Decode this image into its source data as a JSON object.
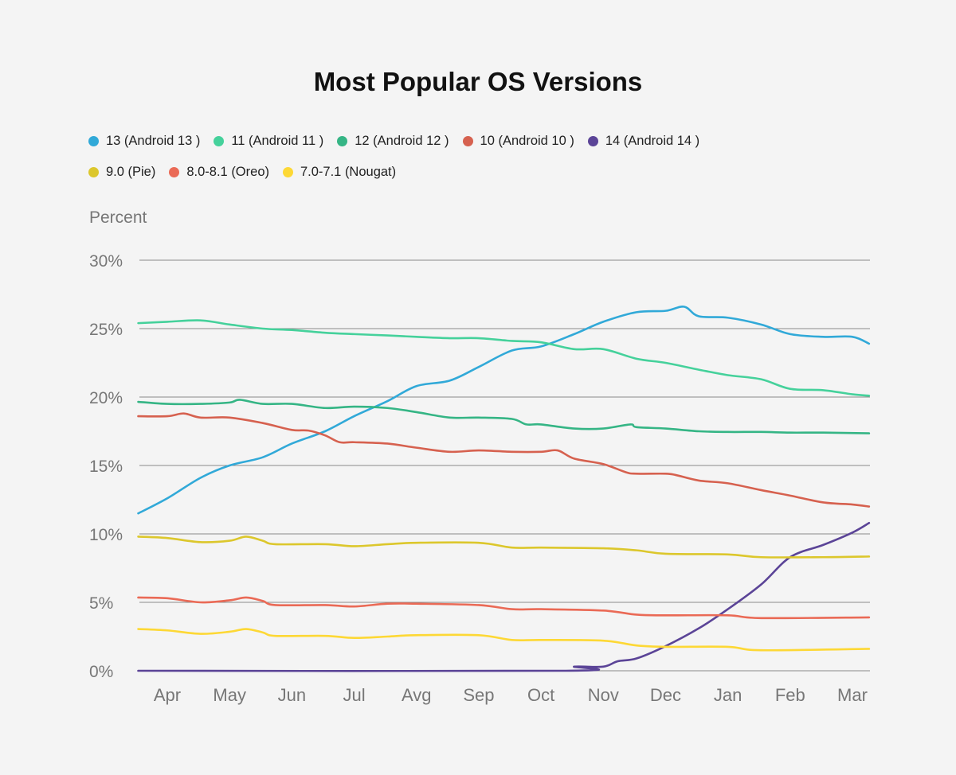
{
  "chart_data": {
    "type": "line",
    "title": "Most Popular OS Versions",
    "ylabel": "Percent",
    "xlabel": "",
    "ylim": [
      0,
      30
    ],
    "y_ticks": [
      "0%",
      "5%",
      "10%",
      "15%",
      "20%",
      "25%",
      "30%"
    ],
    "y_tick_values": [
      0,
      5,
      10,
      15,
      20,
      25,
      30
    ],
    "x_ticks": [
      "Apr",
      "May",
      "Jun",
      "Jul",
      "Avg",
      "Sep",
      "Oct",
      "Nov",
      "Dec",
      "Jan",
      "Feb",
      "Mar"
    ],
    "x_tick_dates": [
      "2023-04-15",
      "2023-05-15",
      "2023-06-15",
      "2023-07-15",
      "2023-08-15",
      "2023-09-15",
      "2023-10-15",
      "2023-11-15",
      "2023-12-15",
      "2024-01-15",
      "2024-02-15",
      "2024-03-15"
    ],
    "xlim": [
      "2023-04-01",
      "2024-03-23"
    ],
    "grid": true,
    "legend_position": "top",
    "series": [
      {
        "name": "13 (Android 13 )",
        "color": "#31a9d8",
        "points": [
          [
            "2023-04-01",
            11.5
          ],
          [
            "2023-04-15",
            12.6
          ],
          [
            "2023-05-01",
            14.1
          ],
          [
            "2023-05-15",
            15.0
          ],
          [
            "2023-06-01",
            15.6
          ],
          [
            "2023-06-15",
            16.6
          ],
          [
            "2023-07-01",
            17.5
          ],
          [
            "2023-07-15",
            18.6
          ],
          [
            "2023-08-01",
            19.7
          ],
          [
            "2023-08-15",
            20.8
          ],
          [
            "2023-09-01",
            21.2
          ],
          [
            "2023-09-15",
            22.2
          ],
          [
            "2023-10-01",
            23.4
          ],
          [
            "2023-10-15",
            23.7
          ],
          [
            "2023-11-01",
            24.6
          ],
          [
            "2023-11-15",
            25.5
          ],
          [
            "2023-12-01",
            26.2
          ],
          [
            "2023-12-15",
            26.3
          ],
          [
            "2023-12-24",
            26.6
          ],
          [
            "2024-01-01",
            25.9
          ],
          [
            "2024-01-15",
            25.8
          ],
          [
            "2024-02-01",
            25.3
          ],
          [
            "2024-02-15",
            24.6
          ],
          [
            "2024-03-01",
            24.4
          ],
          [
            "2024-03-15",
            24.4
          ],
          [
            "2024-03-23",
            23.9
          ]
        ]
      },
      {
        "name": "11 (Android 11 )",
        "color": "#45d19b",
        "points": [
          [
            "2023-04-01",
            25.4
          ],
          [
            "2023-04-15",
            25.5
          ],
          [
            "2023-05-01",
            25.6
          ],
          [
            "2023-05-15",
            25.3
          ],
          [
            "2023-06-01",
            25.0
          ],
          [
            "2023-06-15",
            24.9
          ],
          [
            "2023-07-01",
            24.7
          ],
          [
            "2023-07-15",
            24.6
          ],
          [
            "2023-08-01",
            24.5
          ],
          [
            "2023-08-15",
            24.4
          ],
          [
            "2023-09-01",
            24.3
          ],
          [
            "2023-09-15",
            24.3
          ],
          [
            "2023-10-01",
            24.1
          ],
          [
            "2023-10-15",
            24.0
          ],
          [
            "2023-11-01",
            23.5
          ],
          [
            "2023-11-15",
            23.5
          ],
          [
            "2023-12-01",
            22.8
          ],
          [
            "2023-12-15",
            22.5
          ],
          [
            "2024-01-01",
            22.0
          ],
          [
            "2024-01-15",
            21.6
          ],
          [
            "2024-02-01",
            21.3
          ],
          [
            "2024-02-15",
            20.6
          ],
          [
            "2024-03-01",
            20.5
          ],
          [
            "2024-03-15",
            20.2
          ],
          [
            "2024-03-23",
            20.1
          ]
        ]
      },
      {
        "name": "12 (Android 12 )",
        "color": "#35b585",
        "points": [
          [
            "2023-04-01",
            19.65
          ],
          [
            "2023-04-15",
            19.5
          ],
          [
            "2023-05-01",
            19.5
          ],
          [
            "2023-05-15",
            19.6
          ],
          [
            "2023-05-20",
            19.8
          ],
          [
            "2023-06-01",
            19.5
          ],
          [
            "2023-06-15",
            19.5
          ],
          [
            "2023-07-01",
            19.2
          ],
          [
            "2023-07-15",
            19.3
          ],
          [
            "2023-08-01",
            19.2
          ],
          [
            "2023-08-15",
            18.9
          ],
          [
            "2023-09-01",
            18.5
          ],
          [
            "2023-09-15",
            18.5
          ],
          [
            "2023-10-01",
            18.4
          ],
          [
            "2023-10-08",
            18.0
          ],
          [
            "2023-10-15",
            18.0
          ],
          [
            "2023-11-01",
            17.7
          ],
          [
            "2023-11-15",
            17.7
          ],
          [
            "2023-11-28",
            18.0
          ],
          [
            "2023-12-01",
            17.8
          ],
          [
            "2023-12-15",
            17.7
          ],
          [
            "2024-01-01",
            17.5
          ],
          [
            "2024-01-15",
            17.45
          ],
          [
            "2024-02-01",
            17.45
          ],
          [
            "2024-02-15",
            17.4
          ],
          [
            "2024-03-01",
            17.4
          ],
          [
            "2024-03-23",
            17.35
          ]
        ]
      },
      {
        "name": "10 (Android 10 )",
        "color": "#d6614f",
        "points": [
          [
            "2023-04-01",
            18.6
          ],
          [
            "2023-04-15",
            18.6
          ],
          [
            "2023-04-23",
            18.8
          ],
          [
            "2023-05-01",
            18.5
          ],
          [
            "2023-05-15",
            18.5
          ],
          [
            "2023-06-01",
            18.1
          ],
          [
            "2023-06-15",
            17.6
          ],
          [
            "2023-06-23",
            17.55
          ],
          [
            "2023-07-01",
            17.2
          ],
          [
            "2023-07-08",
            16.7
          ],
          [
            "2023-07-15",
            16.7
          ],
          [
            "2023-08-01",
            16.6
          ],
          [
            "2023-08-15",
            16.3
          ],
          [
            "2023-09-01",
            16.0
          ],
          [
            "2023-09-15",
            16.1
          ],
          [
            "2023-10-01",
            16.0
          ],
          [
            "2023-10-15",
            16.0
          ],
          [
            "2023-10-23",
            16.1
          ],
          [
            "2023-11-01",
            15.5
          ],
          [
            "2023-11-15",
            15.1
          ],
          [
            "2023-11-26",
            14.5
          ],
          [
            "2023-12-01",
            14.4
          ],
          [
            "2023-12-15",
            14.4
          ],
          [
            "2023-12-20",
            14.3
          ],
          [
            "2024-01-01",
            13.9
          ],
          [
            "2024-01-15",
            13.7
          ],
          [
            "2024-02-01",
            13.2
          ],
          [
            "2024-02-15",
            12.8
          ],
          [
            "2024-03-01",
            12.3
          ],
          [
            "2024-03-15",
            12.15
          ],
          [
            "2024-03-23",
            12.0
          ]
        ]
      },
      {
        "name": "14 (Android 14 )",
        "color": "#5b4497",
        "points": [
          [
            "2023-04-01",
            0
          ],
          [
            "2023-10-27",
            0
          ],
          [
            "2023-11-01",
            0.3
          ],
          [
            "2023-11-15",
            0.3
          ],
          [
            "2023-11-22",
            0.7
          ],
          [
            "2023-12-01",
            0.9
          ],
          [
            "2023-12-15",
            1.8
          ],
          [
            "2024-01-01",
            3.1
          ],
          [
            "2024-01-15",
            4.5
          ],
          [
            "2024-02-01",
            6.3
          ],
          [
            "2024-02-15",
            8.3
          ],
          [
            "2024-03-01",
            9.2
          ],
          [
            "2024-03-15",
            10.1
          ],
          [
            "2024-03-23",
            10.8
          ]
        ]
      },
      {
        "name": "9.0 (Pie)",
        "color": "#dcc72c",
        "points": [
          [
            "2023-04-01",
            9.8
          ],
          [
            "2023-04-15",
            9.7
          ],
          [
            "2023-05-01",
            9.4
          ],
          [
            "2023-05-15",
            9.5
          ],
          [
            "2023-05-23",
            9.8
          ],
          [
            "2023-06-01",
            9.5
          ],
          [
            "2023-06-07",
            9.25
          ],
          [
            "2023-07-01",
            9.25
          ],
          [
            "2023-07-15",
            9.1
          ],
          [
            "2023-08-01",
            9.25
          ],
          [
            "2023-08-15",
            9.35
          ],
          [
            "2023-09-15",
            9.35
          ],
          [
            "2023-10-01",
            9.0
          ],
          [
            "2023-10-15",
            9.0
          ],
          [
            "2023-11-15",
            8.95
          ],
          [
            "2023-12-01",
            8.8
          ],
          [
            "2023-12-15",
            8.55
          ],
          [
            "2024-01-15",
            8.5
          ],
          [
            "2024-02-01",
            8.3
          ],
          [
            "2024-03-01",
            8.3
          ],
          [
            "2024-03-23",
            8.35
          ]
        ]
      },
      {
        "name": "8.0-8.1 (Oreo)",
        "color": "#ea6a56",
        "points": [
          [
            "2023-04-01",
            5.35
          ],
          [
            "2023-04-15",
            5.3
          ],
          [
            "2023-05-01",
            5.0
          ],
          [
            "2023-05-15",
            5.15
          ],
          [
            "2023-05-23",
            5.35
          ],
          [
            "2023-06-01",
            5.1
          ],
          [
            "2023-06-07",
            4.8
          ],
          [
            "2023-07-01",
            4.8
          ],
          [
            "2023-07-15",
            4.7
          ],
          [
            "2023-08-01",
            4.9
          ],
          [
            "2023-08-15",
            4.9
          ],
          [
            "2023-09-15",
            4.8
          ],
          [
            "2023-10-01",
            4.5
          ],
          [
            "2023-10-15",
            4.5
          ],
          [
            "2023-11-15",
            4.4
          ],
          [
            "2023-12-01",
            4.1
          ],
          [
            "2023-12-15",
            4.05
          ],
          [
            "2024-01-15",
            4.05
          ],
          [
            "2024-02-01",
            3.85
          ],
          [
            "2024-03-23",
            3.9
          ]
        ]
      },
      {
        "name": "7.0-7.1 (Nougat)",
        "color": "#fdd835",
        "points": [
          [
            "2023-04-01",
            3.05
          ],
          [
            "2023-04-15",
            2.95
          ],
          [
            "2023-05-01",
            2.7
          ],
          [
            "2023-05-15",
            2.85
          ],
          [
            "2023-05-23",
            3.05
          ],
          [
            "2023-06-01",
            2.8
          ],
          [
            "2023-06-07",
            2.55
          ],
          [
            "2023-07-01",
            2.55
          ],
          [
            "2023-07-15",
            2.4
          ],
          [
            "2023-08-01",
            2.5
          ],
          [
            "2023-08-15",
            2.6
          ],
          [
            "2023-09-15",
            2.6
          ],
          [
            "2023-10-01",
            2.25
          ],
          [
            "2023-10-15",
            2.25
          ],
          [
            "2023-11-15",
            2.2
          ],
          [
            "2023-12-01",
            1.85
          ],
          [
            "2023-12-15",
            1.75
          ],
          [
            "2024-01-15",
            1.75
          ],
          [
            "2024-02-01",
            1.5
          ],
          [
            "2024-03-23",
            1.6
          ]
        ]
      }
    ]
  }
}
